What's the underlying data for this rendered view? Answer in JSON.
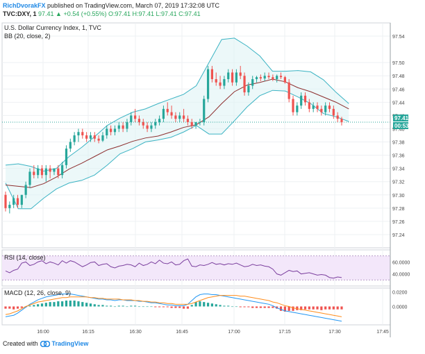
{
  "header": {
    "author": "RichDvorakFX",
    "published": "published on TradingView.com, March 07, 2019 17:32:08 UTC",
    "ticker": "TVC:DXY, 1",
    "ohlc": "97.41 ▲ +0.54 (+0.55%) O:97.41 H:97.41 L:97.41 C:97.41"
  },
  "footer": {
    "created_with": "Created with",
    "brand": "TradingView"
  },
  "colors": {
    "up": "#26a69a",
    "down": "#ef5350",
    "bands": "#3bb3c3",
    "basis": "#8c2d2d",
    "rsi": "#7b3f9e",
    "macd": "#2196f3",
    "signal": "#ff8c1a",
    "price_line": "#26a69a"
  },
  "chart_data": [
    {
      "type": "candlestick",
      "title": "U.S. Dollar Currency Index, 1, TVC",
      "indicator_label": "BB (20, close, 2)",
      "x": [
        "16:00",
        "16:15",
        "16:30",
        "16:45",
        "17:00",
        "17:15",
        "17:30",
        "17:45"
      ],
      "y_ticks": [
        "97.54",
        "97.50",
        "97.48",
        "97.46",
        "97.44",
        "97.42",
        "97.40",
        "97.38",
        "97.36",
        "97.34",
        "97.32",
        "97.30",
        "97.28",
        "97.26",
        "97.24"
      ],
      "ylim": [
        97.22,
        97.56
      ],
      "last_price": "97.41",
      "countdown": "00:53",
      "grid": true,
      "candles": [
        {
          "o": 97.3,
          "h": 97.305,
          "l": 97.275,
          "c": 97.28
        },
        {
          "o": 97.28,
          "h": 97.29,
          "l": 97.272,
          "c": 97.285
        },
        {
          "o": 97.285,
          "h": 97.3,
          "l": 97.28,
          "c": 97.295
        },
        {
          "o": 97.295,
          "h": 97.3,
          "l": 97.28,
          "c": 97.285
        },
        {
          "o": 97.285,
          "h": 97.3,
          "l": 97.28,
          "c": 97.3
        },
        {
          "o": 97.3,
          "h": 97.32,
          "l": 97.295,
          "c": 97.315
        },
        {
          "o": 97.315,
          "h": 97.34,
          "l": 97.31,
          "c": 97.335
        },
        {
          "o": 97.335,
          "h": 97.345,
          "l": 97.325,
          "c": 97.33
        },
        {
          "o": 97.33,
          "h": 97.345,
          "l": 97.325,
          "c": 97.34
        },
        {
          "o": 97.34,
          "h": 97.345,
          "l": 97.325,
          "c": 97.33
        },
        {
          "o": 97.33,
          "h": 97.345,
          "l": 97.32,
          "c": 97.34
        },
        {
          "o": 97.34,
          "h": 97.345,
          "l": 97.325,
          "c": 97.335
        },
        {
          "o": 97.335,
          "h": 97.34,
          "l": 97.33,
          "c": 97.34
        },
        {
          "o": 97.34,
          "h": 97.345,
          "l": 97.325,
          "c": 97.33
        },
        {
          "o": 97.33,
          "h": 97.35,
          "l": 97.325,
          "c": 97.345
        },
        {
          "o": 97.345,
          "h": 97.375,
          "l": 97.34,
          "c": 97.37
        },
        {
          "o": 97.37,
          "h": 97.385,
          "l": 97.365,
          "c": 97.38
        },
        {
          "o": 97.38,
          "h": 97.395,
          "l": 97.375,
          "c": 97.39
        },
        {
          "o": 97.39,
          "h": 97.4,
          "l": 97.38,
          "c": 97.395
        },
        {
          "o": 97.395,
          "h": 97.4,
          "l": 97.385,
          "c": 97.39
        },
        {
          "o": 97.39,
          "h": 97.395,
          "l": 97.38,
          "c": 97.385
        },
        {
          "o": 97.385,
          "h": 97.395,
          "l": 97.38,
          "c": 97.39
        },
        {
          "o": 97.39,
          "h": 97.395,
          "l": 97.38,
          "c": 97.385
        },
        {
          "o": 97.385,
          "h": 97.39,
          "l": 97.378,
          "c": 97.382
        },
        {
          "o": 97.382,
          "h": 97.395,
          "l": 97.38,
          "c": 97.39
        },
        {
          "o": 97.39,
          "h": 97.405,
          "l": 97.385,
          "c": 97.4
        },
        {
          "o": 97.4,
          "h": 97.405,
          "l": 97.39,
          "c": 97.395
        },
        {
          "o": 97.395,
          "h": 97.405,
          "l": 97.39,
          "c": 97.4
        },
        {
          "o": 97.4,
          "h": 97.41,
          "l": 97.395,
          "c": 97.405
        },
        {
          "o": 97.405,
          "h": 97.41,
          "l": 97.395,
          "c": 97.4
        },
        {
          "o": 97.4,
          "h": 97.415,
          "l": 97.395,
          "c": 97.41
        },
        {
          "o": 97.41,
          "h": 97.425,
          "l": 97.405,
          "c": 97.42
        },
        {
          "o": 97.42,
          "h": 97.43,
          "l": 97.41,
          "c": 97.415
        },
        {
          "o": 97.415,
          "h": 97.42,
          "l": 97.405,
          "c": 97.41
        },
        {
          "o": 97.41,
          "h": 97.415,
          "l": 97.4,
          "c": 97.405
        },
        {
          "o": 97.405,
          "h": 97.41,
          "l": 97.395,
          "c": 97.4
        },
        {
          "o": 97.4,
          "h": 97.41,
          "l": 97.395,
          "c": 97.405
        },
        {
          "o": 97.405,
          "h": 97.415,
          "l": 97.4,
          "c": 97.41
        },
        {
          "o": 97.41,
          "h": 97.42,
          "l": 97.405,
          "c": 97.415
        },
        {
          "o": 97.415,
          "h": 97.435,
          "l": 97.41,
          "c": 97.43
        },
        {
          "o": 97.43,
          "h": 97.44,
          "l": 97.42,
          "c": 97.425
        },
        {
          "o": 97.425,
          "h": 97.435,
          "l": 97.415,
          "c": 97.42
        },
        {
          "o": 97.42,
          "h": 97.425,
          "l": 97.41,
          "c": 97.415
        },
        {
          "o": 97.415,
          "h": 97.425,
          "l": 97.41,
          "c": 97.42
        },
        {
          "o": 97.42,
          "h": 97.43,
          "l": 97.41,
          "c": 97.415
        },
        {
          "o": 97.415,
          "h": 97.42,
          "l": 97.405,
          "c": 97.41
        },
        {
          "o": 97.41,
          "h": 97.415,
          "l": 97.4,
          "c": 97.405
        },
        {
          "o": 97.405,
          "h": 97.41,
          "l": 97.4,
          "c": 97.41
        },
        {
          "o": 97.41,
          "h": 97.415,
          "l": 97.405,
          "c": 97.41
        },
        {
          "o": 97.41,
          "h": 97.45,
          "l": 97.405,
          "c": 97.445
        },
        {
          "o": 97.445,
          "h": 97.495,
          "l": 97.44,
          "c": 97.49
        },
        {
          "o": 97.49,
          "h": 97.495,
          "l": 97.47,
          "c": 97.475
        },
        {
          "o": 97.475,
          "h": 97.485,
          "l": 97.465,
          "c": 97.47
        },
        {
          "o": 97.47,
          "h": 97.48,
          "l": 97.46,
          "c": 97.465
        },
        {
          "o": 97.465,
          "h": 97.48,
          "l": 97.46,
          "c": 97.475
        },
        {
          "o": 97.475,
          "h": 97.49,
          "l": 97.47,
          "c": 97.485
        },
        {
          "o": 97.485,
          "h": 97.49,
          "l": 97.465,
          "c": 97.47
        },
        {
          "o": 97.47,
          "h": 97.49,
          "l": 97.465,
          "c": 97.485
        },
        {
          "o": 97.485,
          "h": 97.495,
          "l": 97.475,
          "c": 97.48
        },
        {
          "o": 97.48,
          "h": 97.485,
          "l": 97.45,
          "c": 97.455
        },
        {
          "o": 97.455,
          "h": 97.47,
          "l": 97.45,
          "c": 97.465
        },
        {
          "o": 97.465,
          "h": 97.48,
          "l": 97.46,
          "c": 97.475
        },
        {
          "o": 97.475,
          "h": 97.48,
          "l": 97.47,
          "c": 97.478
        },
        {
          "o": 97.478,
          "h": 97.482,
          "l": 97.472,
          "c": 97.476
        },
        {
          "o": 97.476,
          "h": 97.485,
          "l": 97.472,
          "c": 97.48
        },
        {
          "o": 97.48,
          "h": 97.485,
          "l": 97.475,
          "c": 97.478
        },
        {
          "o": 97.478,
          "h": 97.482,
          "l": 97.472,
          "c": 97.475
        },
        {
          "o": 97.475,
          "h": 97.482,
          "l": 97.47,
          "c": 97.48
        },
        {
          "o": 97.48,
          "h": 97.485,
          "l": 97.475,
          "c": 97.478
        },
        {
          "o": 97.478,
          "h": 97.48,
          "l": 97.468,
          "c": 97.47
        },
        {
          "o": 97.47,
          "h": 97.475,
          "l": 97.44,
          "c": 97.445
        },
        {
          "o": 97.445,
          "h": 97.45,
          "l": 97.42,
          "c": 97.425
        },
        {
          "o": 97.425,
          "h": 97.44,
          "l": 97.42,
          "c": 97.435
        },
        {
          "o": 97.435,
          "h": 97.455,
          "l": 97.43,
          "c": 97.45
        },
        {
          "o": 97.45,
          "h": 97.455,
          "l": 97.435,
          "c": 97.44
        },
        {
          "o": 97.44,
          "h": 97.445,
          "l": 97.425,
          "c": 97.43
        },
        {
          "o": 97.43,
          "h": 97.44,
          "l": 97.425,
          "c": 97.435
        },
        {
          "o": 97.435,
          "h": 97.44,
          "l": 97.425,
          "c": 97.43
        },
        {
          "o": 97.43,
          "h": 97.435,
          "l": 97.42,
          "c": 97.425
        },
        {
          "o": 97.425,
          "h": 97.44,
          "l": 97.42,
          "c": 97.435
        },
        {
          "o": 97.435,
          "h": 97.44,
          "l": 97.425,
          "c": 97.43
        },
        {
          "o": 97.43,
          "h": 97.435,
          "l": 97.415,
          "c": 97.42
        },
        {
          "o": 97.42,
          "h": 97.425,
          "l": 97.41,
          "c": 97.415
        },
        {
          "o": 97.415,
          "h": 97.418,
          "l": 97.405,
          "c": 97.41
        }
      ],
      "bb_upper": [
        97.345,
        97.347,
        97.343,
        97.336,
        97.34,
        97.358,
        97.372,
        97.388,
        97.405,
        97.416,
        97.425,
        97.43,
        97.438,
        97.445,
        97.452,
        97.465,
        97.5,
        97.535,
        97.537,
        97.525,
        97.51,
        97.487,
        97.487,
        97.488,
        97.486,
        97.474,
        97.455,
        97.438
      ],
      "bb_basis": [
        97.315,
        97.313,
        97.311,
        97.317,
        97.327,
        97.339,
        97.348,
        97.358,
        97.368,
        97.374,
        97.381,
        97.386,
        97.389,
        97.395,
        97.402,
        97.406,
        97.418,
        97.438,
        97.456,
        97.466,
        97.47,
        97.475,
        97.471,
        97.462,
        97.456,
        97.448,
        97.44,
        97.43
      ],
      "bb_lower": [
        97.318,
        97.279,
        97.279,
        97.295,
        97.309,
        97.318,
        97.322,
        97.33,
        97.345,
        97.362,
        97.37,
        97.38,
        97.383,
        97.387,
        97.395,
        97.405,
        97.392,
        97.392,
        97.412,
        97.433,
        97.45,
        97.458,
        97.457,
        97.448,
        97.438,
        97.423,
        97.418,
        97.411
      ]
    },
    {
      "type": "line",
      "title": "RSI (14, close)",
      "y_ticks": [
        "60.0000",
        "40.0000"
      ],
      "ylim": [
        20,
        80
      ],
      "band": [
        30,
        70
      ],
      "values": [
        45,
        42,
        46,
        48,
        58,
        60,
        54,
        56,
        60,
        62,
        57,
        60,
        58,
        55,
        62,
        58,
        62,
        60,
        56,
        52,
        55,
        59,
        60,
        54,
        56,
        57,
        52,
        50,
        53,
        54,
        56,
        55,
        52,
        58,
        54,
        56,
        60,
        57,
        63,
        58,
        57,
        60,
        55,
        56,
        62,
        65,
        53,
        52,
        55,
        54,
        56,
        59,
        56,
        57,
        55,
        57,
        56,
        58,
        55,
        52,
        53,
        56,
        54,
        55,
        53,
        52,
        48,
        40,
        38,
        42,
        46,
        44,
        45,
        40,
        41,
        42,
        40,
        38,
        39,
        38,
        34,
        33,
        35,
        34
      ]
    },
    {
      "type": "bar+line",
      "title": "MACD (12, 26, close, 9)",
      "y_ticks": [
        "0.0200",
        "0.0000"
      ],
      "ylim": [
        -0.025,
        0.025
      ],
      "histogram": [
        -0.003,
        -0.003,
        -0.004,
        -0.003,
        -0.002,
        -0.001,
        0.001,
        0.002,
        0.003,
        0.004,
        0.005,
        0.006,
        0.006,
        0.007,
        0.007,
        0.008,
        0.008,
        0.008,
        0.007,
        0.006,
        0.005,
        0.004,
        0.003,
        0.002,
        0.002,
        0.001,
        0.001,
        0.0,
        0.001,
        0.001,
        0.0,
        0.001,
        0.001,
        0.0,
        0.0,
        0.0,
        0.0,
        -0.001,
        -0.001,
        -0.001,
        -0.001,
        -0.002,
        -0.002,
        -0.002,
        -0.003,
        -0.003,
        0.002,
        0.006,
        0.007,
        0.006,
        0.005,
        0.004,
        0.003,
        0.002,
        0.001,
        0.001,
        0.0,
        0.0,
        -0.001,
        -0.001,
        -0.001,
        -0.002,
        -0.002,
        -0.002,
        -0.002,
        -0.002,
        -0.002,
        -0.003,
        -0.006,
        -0.007,
        -0.006,
        -0.006,
        -0.005,
        -0.005,
        -0.004,
        -0.004,
        -0.004,
        -0.004,
        -0.005,
        -0.004,
        -0.004,
        -0.004,
        -0.004,
        -0.004
      ],
      "macd": [
        -0.014,
        -0.013,
        -0.012,
        -0.009,
        -0.005,
        -0.001,
        0.003,
        0.006,
        0.009,
        0.011,
        0.013,
        0.014,
        0.015,
        0.016,
        0.017,
        0.017,
        0.017,
        0.016,
        0.015,
        0.014,
        0.013,
        0.012,
        0.011,
        0.01,
        0.01,
        0.009,
        0.009,
        0.008,
        0.009,
        0.009,
        0.008,
        0.008,
        0.008,
        0.007,
        0.007,
        0.006,
        0.005,
        0.005,
        0.004,
        0.003,
        0.002,
        0.002,
        0.001,
        0.001,
        0.001,
        0.003,
        0.008,
        0.013,
        0.016,
        0.017,
        0.017,
        0.016,
        0.016,
        0.015,
        0.014,
        0.013,
        0.012,
        0.011,
        0.01,
        0.009,
        0.008,
        0.007,
        0.006,
        0.005,
        0.004,
        0.003,
        0.001,
        -0.002,
        -0.004,
        -0.006,
        -0.007,
        -0.008,
        -0.009,
        -0.01,
        -0.011,
        -0.012,
        -0.013,
        -0.014,
        -0.015,
        -0.016,
        -0.017,
        -0.018,
        -0.019,
        -0.02
      ],
      "signal": [
        -0.011,
        -0.01,
        -0.008,
        -0.006,
        -0.003,
        0.0,
        0.002,
        0.004,
        0.006,
        0.007,
        0.008,
        0.009,
        0.01,
        0.011,
        0.012,
        0.012,
        0.013,
        0.013,
        0.013,
        0.013,
        0.013,
        0.012,
        0.012,
        0.011,
        0.011,
        0.01,
        0.01,
        0.01,
        0.01,
        0.009,
        0.009,
        0.009,
        0.008,
        0.008,
        0.007,
        0.007,
        0.006,
        0.006,
        0.005,
        0.005,
        0.004,
        0.004,
        0.003,
        0.003,
        0.003,
        0.003,
        0.004,
        0.006,
        0.008,
        0.01,
        0.012,
        0.013,
        0.014,
        0.015,
        0.015,
        0.015,
        0.015,
        0.015,
        0.014,
        0.014,
        0.013,
        0.012,
        0.011,
        0.01,
        0.009,
        0.008,
        0.006,
        0.005,
        0.003,
        0.001,
        0.0,
        -0.002,
        -0.003,
        -0.004,
        -0.005,
        -0.006,
        -0.007,
        -0.008,
        -0.009,
        -0.01,
        -0.011,
        -0.012,
        -0.013,
        -0.014
      ]
    }
  ]
}
